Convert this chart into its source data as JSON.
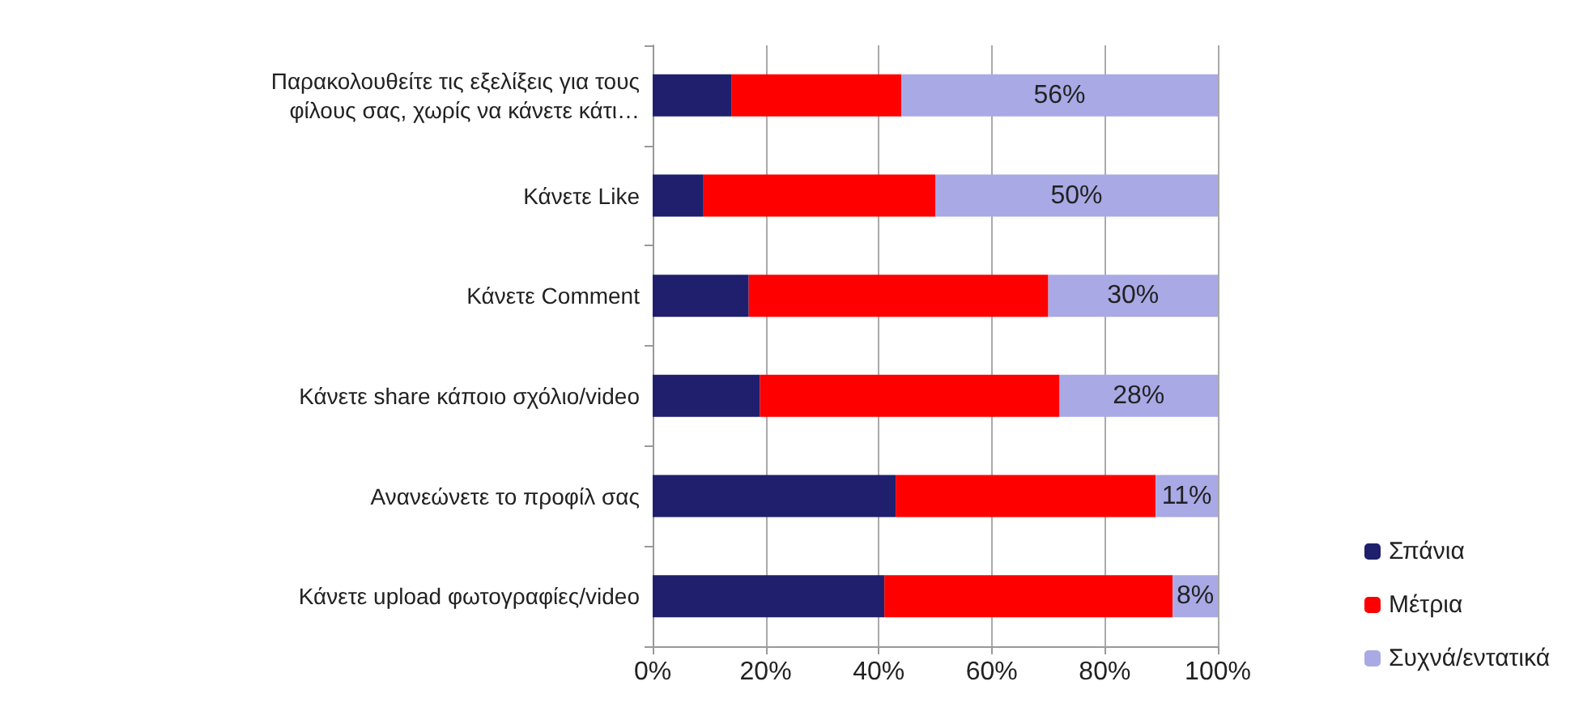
{
  "chart_data": {
    "type": "bar",
    "orientation": "horizontal",
    "stacked": true,
    "categories": [
      "Παρακολουθείτε τις εξελίξεις για τους\nφίλους σας, χωρίς να κάνετε κάτι…",
      "Κάνετε Like",
      "Κάνετε Comment",
      "Κάνετε share κάποιο σχόλιο/video",
      "Ανανεώνετε το προφίλ σας",
      "Κάνετε upload φωτογραφίες/video"
    ],
    "series": [
      {
        "name": "Σπάνια",
        "color": "#1f1f6e",
        "values": [
          14,
          9,
          17,
          19,
          43,
          41
        ]
      },
      {
        "name": "Μέτρια",
        "color": "#ff0000",
        "values": [
          30,
          41,
          53,
          53,
          46,
          51
        ]
      },
      {
        "name": "Συχνά/εντατικά",
        "color": "#a9a9e6",
        "values": [
          56,
          50,
          30,
          28,
          11,
          8
        ],
        "value_labels": [
          "56%",
          "50%",
          "30%",
          "28%",
          "11%",
          "8%"
        ]
      }
    ],
    "xlim": [
      0,
      100
    ],
    "xticks": [
      {
        "value": 0,
        "label": "0%"
      },
      {
        "value": 20,
        "label": "20%"
      },
      {
        "value": 40,
        "label": "40%"
      },
      {
        "value": 60,
        "label": "60%"
      },
      {
        "value": 80,
        "label": "80%"
      },
      {
        "value": 100,
        "label": "100%"
      }
    ],
    "grid": "x",
    "legend": "right"
  }
}
